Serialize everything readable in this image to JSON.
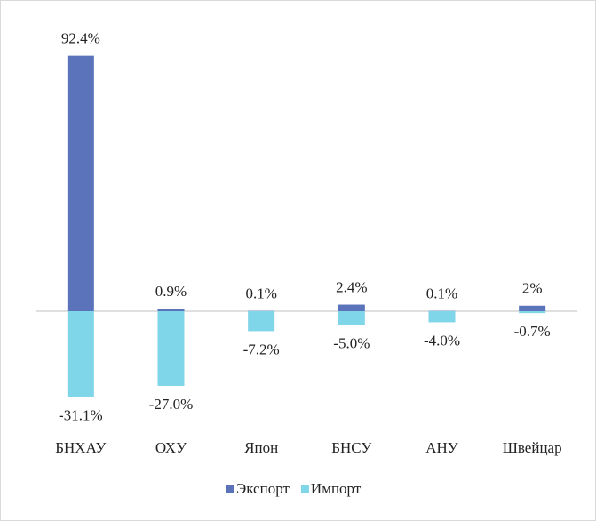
{
  "chart_data": {
    "type": "bar",
    "categories": [
      "БНХАУ",
      "ОХУ",
      "Япон",
      "БНСУ",
      "АНУ",
      "Швейцар"
    ],
    "series": [
      {
        "name": "Экспорт",
        "color": "#5b73bb",
        "values": [
          92.4,
          0.9,
          0.1,
          2.4,
          0.1,
          2
        ],
        "value_labels": [
          "92.4%",
          "0.9%",
          "0.1%",
          "2.4%",
          "0.1%",
          "2%"
        ]
      },
      {
        "name": "Импорт",
        "color": "#7fd6e8",
        "values": [
          -31.1,
          -27.0,
          -7.2,
          -5.0,
          -4.0,
          -0.7
        ],
        "value_labels": [
          "-31.1%",
          "-27.0%",
          "-7.2%",
          "-5.0%",
          "-4.0%",
          "-0.7%"
        ]
      }
    ],
    "legend": "bottom"
  }
}
